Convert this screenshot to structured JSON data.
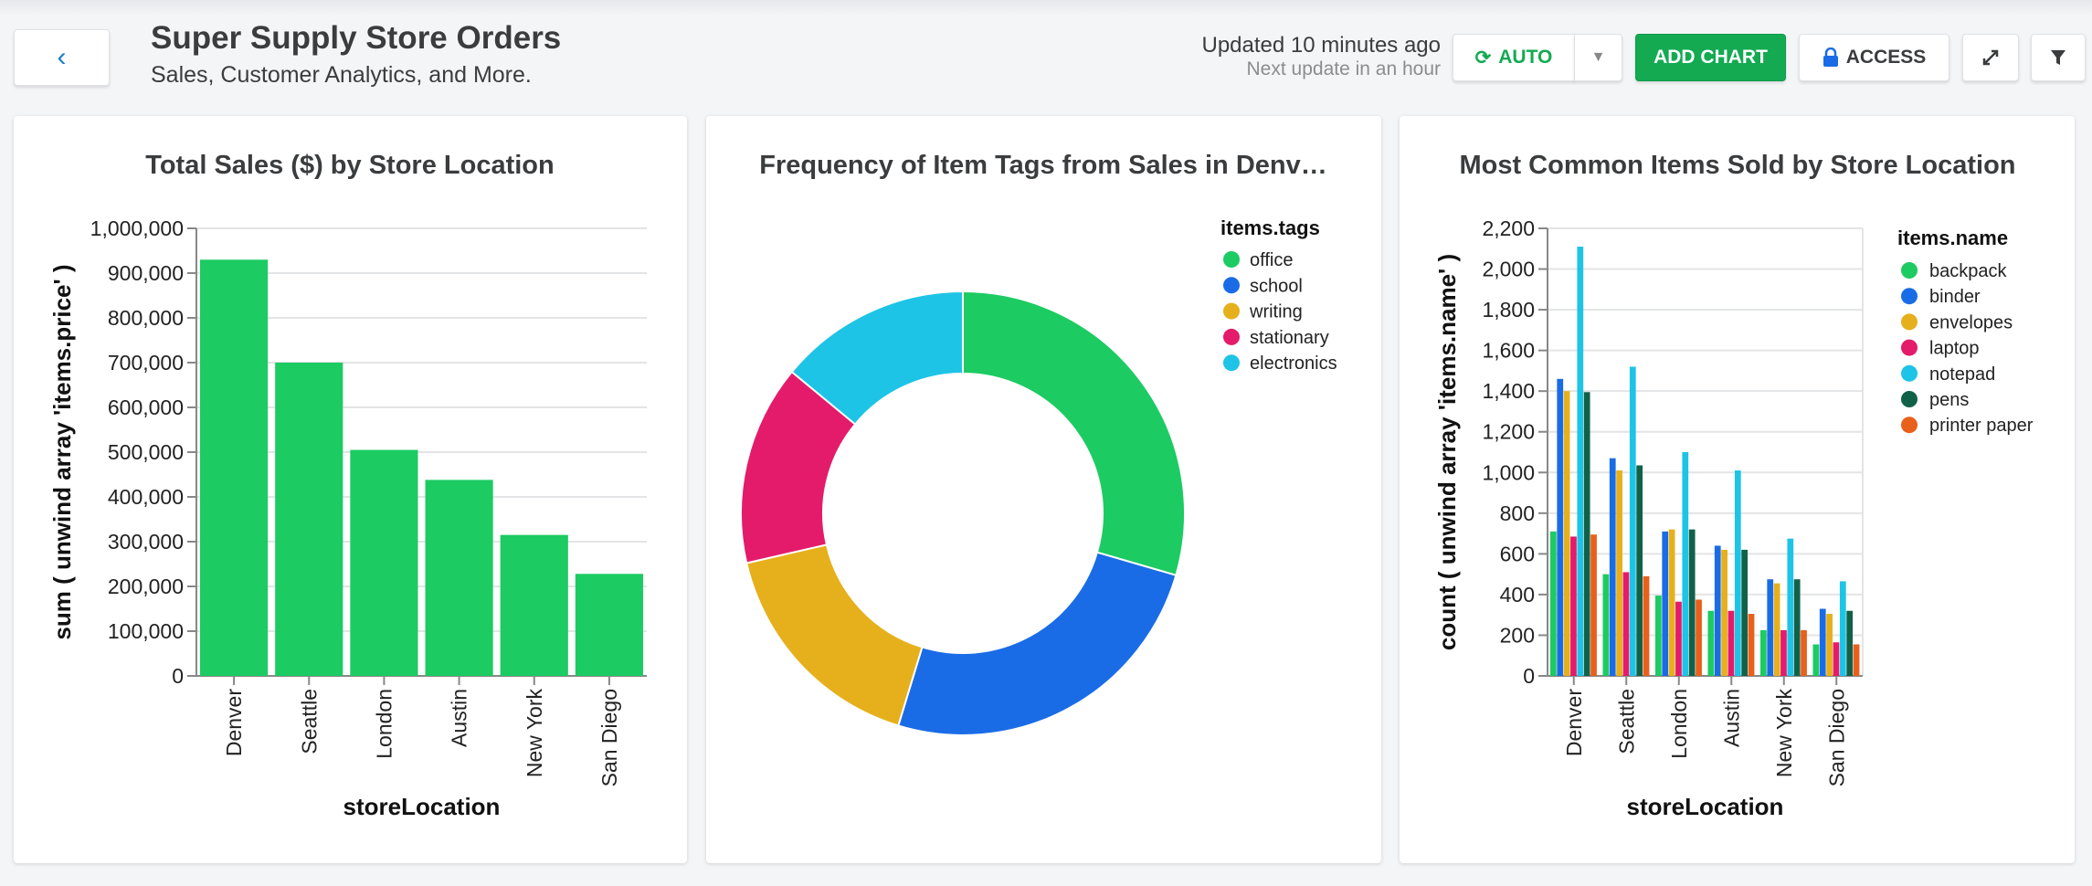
{
  "header": {
    "title": "Super Supply Store Orders",
    "subtitle": "Sales, Customer Analytics, and More.",
    "updated": "Updated 10 minutes ago",
    "next_update": "Next update in an hour",
    "buttons": {
      "auto": "AUTO",
      "add_chart": "ADD CHART",
      "access": "ACCESS"
    },
    "icons": {
      "back": "chevron-left-icon",
      "refresh": "refresh-icon",
      "dropdown": "caret-down-icon",
      "lock": "lock-icon",
      "expand": "expand-icon",
      "filter": "filter-icon"
    },
    "colors": {
      "accent": "#13aa52"
    }
  },
  "chart_data": [
    {
      "type": "bar",
      "title": "Total Sales ($) by Store Location",
      "xlabel": "storeLocation",
      "ylabel": "sum ( unwind array 'items.price' )",
      "categories": [
        "Denver",
        "Seattle",
        "London",
        "Austin",
        "New York",
        "San Diego"
      ],
      "values": [
        930000,
        700000,
        505000,
        438000,
        315000,
        228000
      ],
      "ylim": [
        0,
        1000000
      ],
      "yticks": [
        "0",
        "100,000",
        "200,000",
        "300,000",
        "400,000",
        "500,000",
        "600,000",
        "700,000",
        "800,000",
        "900,000",
        "1,000,000"
      ],
      "color": "#1ccb62",
      "grid": true
    },
    {
      "type": "pie",
      "donut": true,
      "title": "Frequency of Item Tags from Sales in Denv…",
      "legend_title": "items.tags",
      "legend": "right",
      "slices": [
        {
          "label": "office",
          "value": 29.5,
          "color": "#1ccb62"
        },
        {
          "label": "school",
          "value": 25.2,
          "color": "#1a6ce6"
        },
        {
          "label": "writing",
          "value": 16.7,
          "color": "#e6b01c"
        },
        {
          "label": "stationary",
          "value": 14.6,
          "color": "#e41b6b"
        },
        {
          "label": "electronics",
          "value": 14.0,
          "color": "#1ec4e6"
        }
      ]
    },
    {
      "type": "bar",
      "grouped": true,
      "title": "Most Common Items Sold by Store Location",
      "xlabel": "storeLocation",
      "ylabel": "count ( unwind array 'items.name' )",
      "legend_title": "items.name",
      "legend": "right",
      "categories": [
        "Denver",
        "Seattle",
        "London",
        "Austin",
        "New York",
        "San Diego"
      ],
      "ylim": [
        0,
        2200
      ],
      "yticks": [
        "0",
        "200",
        "400",
        "600",
        "800",
        "1,000",
        "1,200",
        "1,400",
        "1,600",
        "1,800",
        "2,000",
        "2,200"
      ],
      "grid": true,
      "series": [
        {
          "name": "backpack",
          "color": "#1ccb62",
          "values": [
            710,
            500,
            395,
            320,
            225,
            155
          ]
        },
        {
          "name": "binder",
          "color": "#1a6ce6",
          "values": [
            1460,
            1070,
            710,
            640,
            475,
            330
          ]
        },
        {
          "name": "envelopes",
          "color": "#e6b01c",
          "values": [
            1400,
            1010,
            720,
            620,
            455,
            305
          ]
        },
        {
          "name": "laptop",
          "color": "#e41b6b",
          "values": [
            685,
            510,
            365,
            320,
            225,
            165
          ]
        },
        {
          "name": "notepad",
          "color": "#1ec4e6",
          "values": [
            2110,
            1520,
            1100,
            1010,
            675,
            465
          ]
        },
        {
          "name": "pens",
          "color": "#116149",
          "values": [
            1395,
            1035,
            720,
            620,
            475,
            320
          ]
        },
        {
          "name": "printer paper",
          "color": "#e8601c",
          "values": [
            695,
            490,
            375,
            305,
            225,
            155
          ]
        }
      ]
    }
  ]
}
